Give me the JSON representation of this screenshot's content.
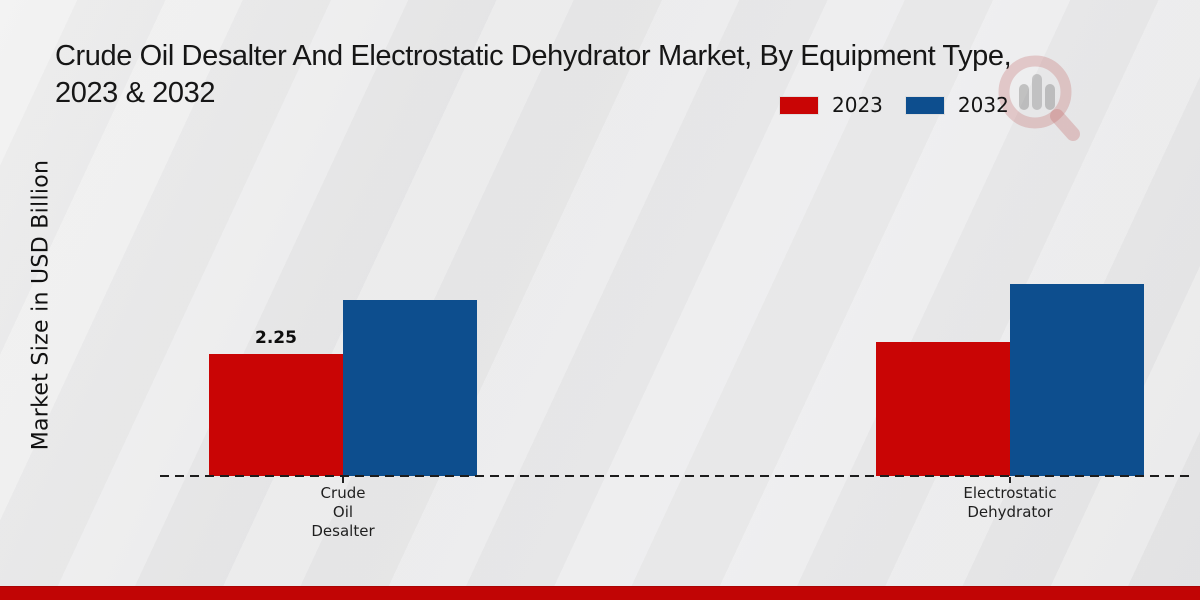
{
  "header": {
    "title_line1": "Crude Oil Desalter And Electrostatic Dehydrator Market, By Equipment Type,",
    "title_line2": "2023 & 2032"
  },
  "legend": {
    "items": [
      {
        "label": "2023",
        "color": "#c90505"
      },
      {
        "label": "2032",
        "color": "#0d4e8e"
      }
    ]
  },
  "y_axis_label": "Market Size in USD Billion",
  "colors": {
    "series_2023_red": "#c90505",
    "series_2032_blue": "#0d4e8e",
    "footer_band_red": "#c10505",
    "background_gray": "#e9e9ea",
    "axis_line": "#1c1c1c",
    "watermark_red": "#c9807f",
    "watermark_gray": "#9a9a9a"
  },
  "watermark_icon": "magnifier-bar-chart-logo",
  "chart_data": {
    "type": "bar",
    "title": "Crude Oil Desalter And Electrostatic Dehydrator Market, By Equipment Type, 2023 & 2032",
    "ylabel": "Market Size in USD Billion",
    "xlabel": "",
    "ylim": [
      0,
      4
    ],
    "grid": false,
    "legend_position": "top-right",
    "categories": [
      "Crude Oil Desalter",
      "Electrostatic Dehydrator"
    ],
    "category_label_lines": [
      [
        "Crude",
        "Oil",
        "Desalter"
      ],
      [
        "Electrostatic",
        "Dehydrator"
      ]
    ],
    "series": [
      {
        "name": "2023",
        "color": "#c90505",
        "values": [
          2.25,
          2.47
        ],
        "value_labels": [
          "2.25",
          ""
        ]
      },
      {
        "name": "2032",
        "color": "#0d4e8e",
        "values": [
          3.25,
          3.54
        ],
        "value_labels": [
          "",
          ""
        ]
      }
    ]
  }
}
